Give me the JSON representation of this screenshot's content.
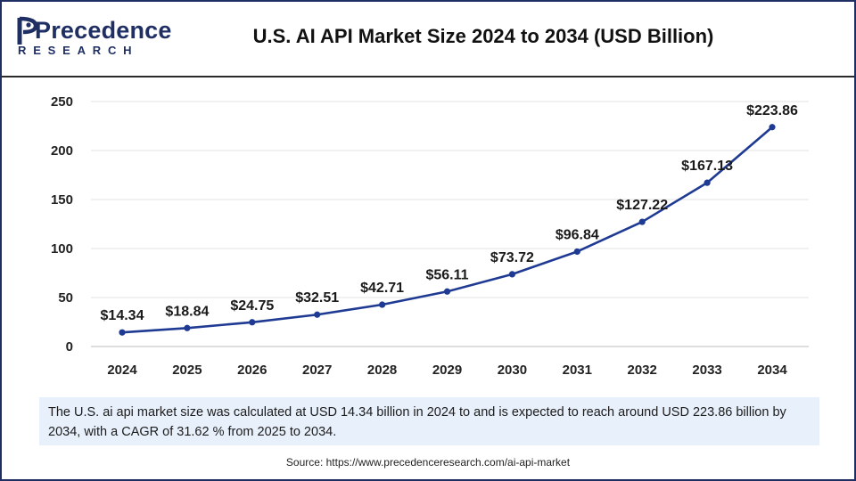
{
  "header": {
    "logo_word": "Precedence",
    "logo_sub": "RESEARCH",
    "title": "U.S. AI API Market Size 2024 to 2034 (USD Billion)"
  },
  "colors": {
    "line": "#1f3a93",
    "brand": "#1f2f63",
    "grid": "#e3e3e3",
    "desc_bg": "#e8f0fb"
  },
  "chart_data": {
    "type": "line",
    "title": "U.S. AI API Market Size 2024 to 2034 (USD Billion)",
    "xlabel": "",
    "ylabel": "",
    "categories": [
      "2024",
      "2025",
      "2026",
      "2027",
      "2028",
      "2029",
      "2030",
      "2031",
      "2032",
      "2033",
      "2034"
    ],
    "series": [
      {
        "name": "U.S. AI API Market Size",
        "values": [
          14.34,
          18.84,
          24.75,
          32.51,
          42.71,
          56.11,
          73.72,
          96.84,
          127.22,
          167.13,
          223.86
        ],
        "labels": [
          "$14.34",
          "$18.84",
          "$24.75",
          "$32.51",
          "$42.71",
          "$56.11",
          "$73.72",
          "$96.84",
          "$127.22",
          "$167.13",
          "$223.86"
        ]
      }
    ],
    "ylim": [
      0,
      250
    ],
    "yticks": [
      0,
      50,
      100,
      150,
      200,
      250
    ],
    "grid": true
  },
  "description": "The U.S. ai api market size was calculated at USD 14.34 billion in 2024 to and is expected to reach around USD 223.86 billion by 2034, with a CAGR of 31.62 % from 2025 to 2034.",
  "source": "Source: https://www.precedenceresearch.com/ai-api-market"
}
